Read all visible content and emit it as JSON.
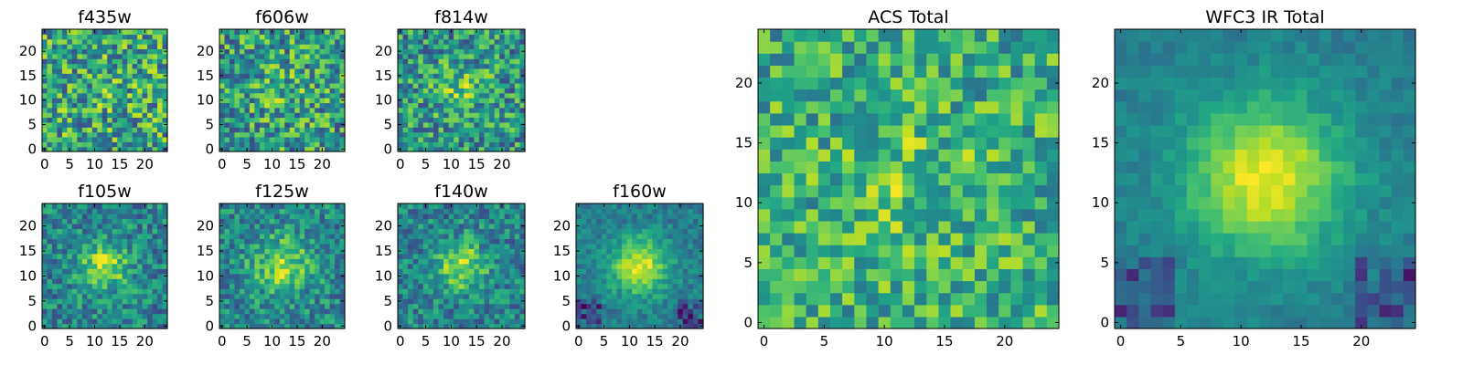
{
  "chart_data": {
    "type": "heatmap",
    "colormap": "viridis",
    "image_size": [
      25,
      25
    ],
    "panels": [
      {
        "title": "f435w",
        "xticks": [
          0,
          5,
          10,
          15,
          20
        ],
        "yticks": [
          0,
          5,
          10,
          15,
          20
        ],
        "blob_strength": 0.05,
        "blob_sigma": 4.0,
        "noise": 0.34,
        "base": 0.58,
        "low_corner": 0.0
      },
      {
        "title": "f606w",
        "xticks": [
          0,
          5,
          10,
          15,
          20
        ],
        "yticks": [
          0,
          5,
          10,
          15,
          20
        ],
        "blob_strength": 0.12,
        "blob_sigma": 3.5,
        "noise": 0.33,
        "base": 0.55,
        "low_corner": 0.0
      },
      {
        "title": "f814w",
        "xticks": [
          0,
          5,
          10,
          15,
          20
        ],
        "yticks": [
          0,
          5,
          10,
          15,
          20
        ],
        "blob_strength": 0.22,
        "blob_sigma": 3.5,
        "noise": 0.3,
        "base": 0.52,
        "low_corner": 0.0
      },
      {
        "title": "f105w",
        "xticks": [
          0,
          5,
          10,
          15,
          20
        ],
        "yticks": [
          0,
          5,
          10,
          15,
          20
        ],
        "blob_strength": 0.42,
        "blob_sigma": 3.5,
        "noise": 0.22,
        "base": 0.45,
        "low_corner": 0.0
      },
      {
        "title": "f125w",
        "xticks": [
          0,
          5,
          10,
          15,
          20
        ],
        "yticks": [
          0,
          5,
          10,
          15,
          20
        ],
        "blob_strength": 0.38,
        "blob_sigma": 4.0,
        "noise": 0.22,
        "base": 0.46,
        "low_corner": 0.0
      },
      {
        "title": "f140w",
        "xticks": [
          0,
          5,
          10,
          15,
          20
        ],
        "yticks": [
          0,
          5,
          10,
          15,
          20
        ],
        "blob_strength": 0.42,
        "blob_sigma": 3.5,
        "noise": 0.22,
        "base": 0.44,
        "low_corner": 0.0
      },
      {
        "title": "f160w",
        "xticks": [
          0,
          5,
          10,
          15,
          20
        ],
        "yticks": [
          0,
          5,
          10,
          15,
          20
        ],
        "blob_strength": 0.52,
        "blob_sigma": 4.0,
        "noise": 0.12,
        "base": 0.42,
        "low_corner": 0.35
      },
      {
        "title": "ACS Total",
        "xticks": [
          0,
          5,
          10,
          15,
          20
        ],
        "yticks": [
          0,
          5,
          10,
          15,
          20
        ],
        "blob_strength": 0.12,
        "blob_sigma": 4.0,
        "noise": 0.26,
        "base": 0.62,
        "low_corner": 0.0
      },
      {
        "title": "WFC3 IR Total",
        "xticks": [
          0,
          5,
          10,
          15,
          20
        ],
        "yticks": [
          0,
          5,
          10,
          15,
          20
        ],
        "blob_strength": 0.55,
        "blob_sigma": 4.5,
        "noise": 0.07,
        "base": 0.43,
        "low_corner": 0.35
      }
    ]
  }
}
